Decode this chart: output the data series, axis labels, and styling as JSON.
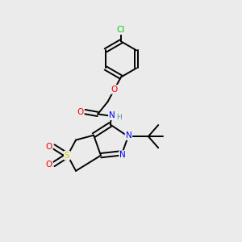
{
  "background_color": "#ebebeb",
  "atom_colors": {
    "C": "#000000",
    "H": "#5f9ea0",
    "N": "#0000ff",
    "O": "#ff0000",
    "S": "#cccc00",
    "Cl": "#00cc00"
  },
  "figsize": [
    3.0,
    3.0
  ],
  "dpi": 100
}
